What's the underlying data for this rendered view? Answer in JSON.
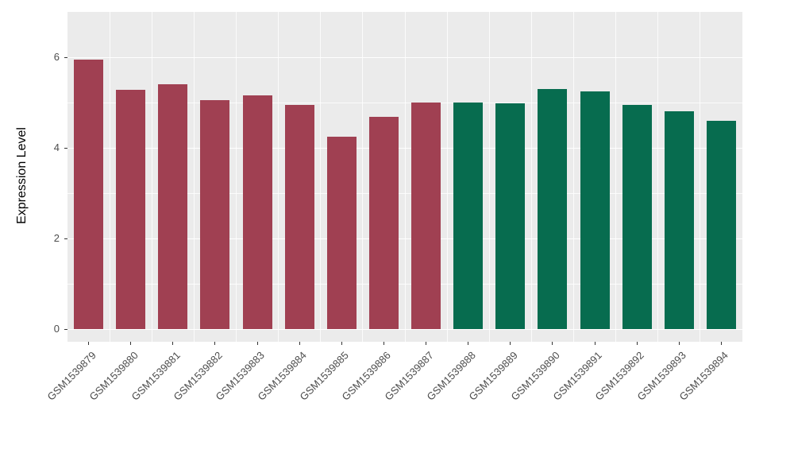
{
  "chart_data": {
    "type": "bar",
    "title": "",
    "xlabel": "",
    "ylabel": "Expression Level",
    "categories": [
      "GSM1539879",
      "GSM1539880",
      "GSM1539881",
      "GSM1539882",
      "GSM1539883",
      "GSM1539884",
      "GSM1539885",
      "GSM1539886",
      "GSM1539887",
      "GSM1539888",
      "GSM1539889",
      "GSM1539890",
      "GSM1539891",
      "GSM1539892",
      "GSM1539893",
      "GSM1539894"
    ],
    "values": [
      5.95,
      5.28,
      5.4,
      5.05,
      5.15,
      4.95,
      4.25,
      4.68,
      5.0,
      5.0,
      4.98,
      5.3,
      5.25,
      4.95,
      4.8,
      4.6
    ],
    "bar_colors": [
      "#a04052",
      "#a04052",
      "#a04052",
      "#a04052",
      "#a04052",
      "#a04052",
      "#a04052",
      "#a04052",
      "#a04052",
      "#076c4f",
      "#076c4f",
      "#076c4f",
      "#076c4f",
      "#076c4f",
      "#076c4f",
      "#076c4f"
    ],
    "groups": [
      {
        "from": "GSM1539879",
        "to": "GSM1539887",
        "color": "#a04052"
      },
      {
        "from": "GSM1539888",
        "to": "GSM1539894",
        "color": "#076c4f"
      }
    ],
    "yticks": [
      0,
      2,
      4,
      6
    ],
    "minor_yticks": [
      1,
      3,
      5
    ],
    "ylim": [
      0,
      6.5
    ],
    "grid": true,
    "legend": "none",
    "panel_background": "#ebebeb",
    "gridline_color": "#ffffff",
    "tick_label_color": "#4d4d4d"
  }
}
